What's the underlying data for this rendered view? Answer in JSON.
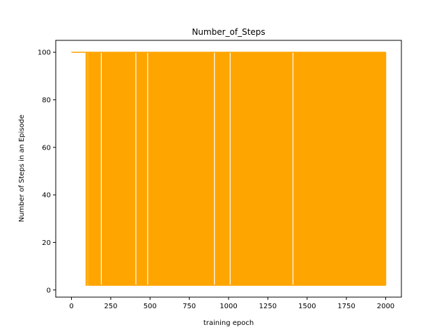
{
  "chart_data": {
    "type": "line",
    "title": "Number_of_Steps",
    "xlabel": "training epoch",
    "ylabel": "Number of Steps in an Episode",
    "xlim": [
      -100,
      2100
    ],
    "ylim": [
      -3,
      105
    ],
    "xticks": [
      0,
      250,
      500,
      750,
      1000,
      1250,
      1500,
      1750,
      2000
    ],
    "yticks": [
      0,
      20,
      40,
      60,
      80,
      100
    ],
    "grid": false,
    "legend": false,
    "series": [
      {
        "color": "#ffa500",
        "x_range": [
          0,
          2000
        ],
        "max_value": 100,
        "min_value": 2,
        "constant_until_epoch": 93,
        "description_points": [
          [
            0,
            100
          ],
          [
            93,
            100
          ],
          [
            93,
            2
          ],
          [
            100,
            2
          ],
          [
            100,
            100
          ],
          [
            108,
            100
          ],
          [
            108,
            2
          ],
          [
            113,
            2
          ],
          [
            113,
            100
          ],
          [
            125,
            100
          ],
          [
            125,
            2
          ],
          [
            2000,
            2
          ]
        ],
        "dense_oscillation_range": [
          113,
          2000
        ],
        "gaps_at_epochs": [
          190,
          410,
          485,
          910,
          1010,
          1410
        ]
      }
    ]
  }
}
